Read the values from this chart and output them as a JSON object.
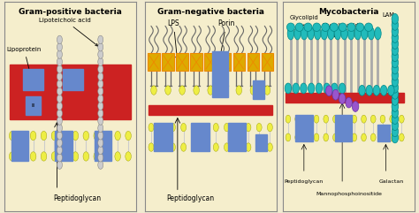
{
  "background_color": "#f0ead0",
  "panel_bg": "#f5eecc",
  "border_color": "#888888",
  "title1": "Gram-positive bacteria",
  "title2": "Gram-negative bacteria",
  "title3": "Mycobacteria",
  "red_color": "#cc2222",
  "blue_color": "#6688cc",
  "yellow_color": "#eeee44",
  "gold_color": "#ddaa00",
  "orange_color": "#ee8800",
  "teal_color": "#22bbbb",
  "purple_color": "#9955cc",
  "gray_color": "#aaaaaa",
  "dark_gray": "#666666",
  "bead_gray": "#cccccc"
}
